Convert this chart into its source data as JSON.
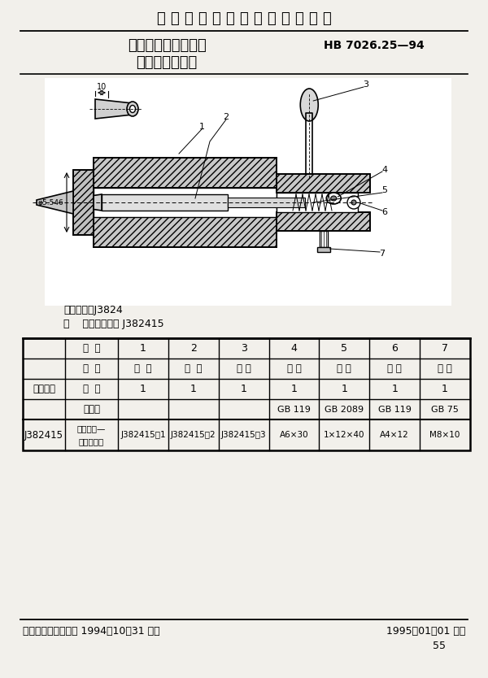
{
  "bg_color": "#f2f0eb",
  "white": "#ffffff",
  "title_top": "中 华 人 民 共 和 国 航 空 工 业 标 准",
  "title_main": "夹具通用元件定位件",
  "title_sub": "拉杆式定位插销",
  "std_number": "HB 7026.25—94",
  "classification": "分类代号：J3824",
  "mark_label": "标",
  "mark_spaces": "    ",
  "mark_rest": "记：定位插销 J382415",
  "footer_left": "中国航空工业总公司 1994－10－31 发布",
  "footer_right": "1995－01－01 实施",
  "page_number": "55",
  "tbl_col_header": [
    "件  号",
    "1",
    "2",
    "3",
    "4",
    "5",
    "6",
    "7"
  ],
  "tbl_row1_label": "名  称",
  "tbl_row1": [
    "导  套",
    "插  销",
    "手 把",
    "销 子",
    "弹 簧",
    "销 子",
    "螺 钉"
  ],
  "tbl_row2_label": "数  量",
  "tbl_row2": [
    "1",
    "1",
    "1",
    "1",
    "1",
    "1",
    "1"
  ],
  "tbl_row3_label": "标准号",
  "tbl_row3": [
    "",
    "",
    "",
    "GB 119",
    "GB 2089",
    "GB 119",
    "GB 75"
  ],
  "tbl_row4_label_top": "标记代号—",
  "tbl_row4_label_bot": "件号或规格",
  "tbl_row4": [
    "J382415－1",
    "J382415－2",
    "J382415－3",
    "A6×30",
    "1×12×40",
    "A4×12",
    "M8×10"
  ],
  "left_merged_label": "标记代号",
  "left_last_label": "J382415"
}
